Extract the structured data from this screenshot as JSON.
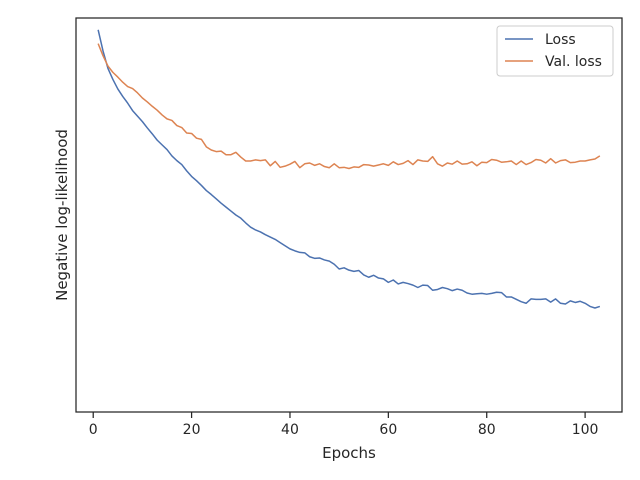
{
  "chart_data": {
    "type": "line",
    "title": "",
    "xlabel": "Epochs",
    "ylabel": "Negative log-likelihood",
    "xlim": [
      -3.5,
      107.5
    ],
    "ylim": [
      0,
      1
    ],
    "xticks": [
      0,
      20,
      40,
      60,
      80,
      100
    ],
    "y_tick_labels": false,
    "grid": false,
    "legend": {
      "placement": "top-right"
    },
    "x": [
      1,
      2,
      3,
      4,
      5,
      6,
      7,
      8,
      9,
      10,
      11,
      12,
      13,
      14,
      15,
      16,
      17,
      18,
      19,
      20,
      21,
      22,
      23,
      24,
      25,
      26,
      27,
      28,
      29,
      30,
      31,
      32,
      33,
      34,
      35,
      36,
      37,
      38,
      39,
      40,
      41,
      42,
      43,
      44,
      45,
      46,
      47,
      48,
      49,
      50,
      51,
      52,
      53,
      54,
      55,
      56,
      57,
      58,
      59,
      60,
      61,
      62,
      63,
      64,
      65,
      66,
      67,
      68,
      69,
      70,
      71,
      72,
      73,
      74,
      75,
      76,
      77,
      78,
      79,
      80,
      81,
      82,
      83,
      84,
      85,
      86,
      87,
      88,
      89,
      90,
      91,
      92,
      93,
      94,
      95,
      96,
      97,
      98,
      99,
      100,
      101,
      102,
      103
    ],
    "series": [
      {
        "name": "Loss",
        "color": "#4c72b0",
        "values": [
          0.97,
          0.916,
          0.872,
          0.844,
          0.82,
          0.801,
          0.784,
          0.765,
          0.751,
          0.737,
          0.721,
          0.706,
          0.69,
          0.678,
          0.666,
          0.65,
          0.638,
          0.628,
          0.612,
          0.598,
          0.587,
          0.575,
          0.562,
          0.552,
          0.541,
          0.53,
          0.52,
          0.51,
          0.5,
          0.492,
          0.48,
          0.469,
          0.462,
          0.457,
          0.45,
          0.444,
          0.438,
          0.43,
          0.422,
          0.414,
          0.409,
          0.405,
          0.404,
          0.394,
          0.39,
          0.391,
          0.386,
          0.383,
          0.375,
          0.363,
          0.366,
          0.36,
          0.357,
          0.359,
          0.348,
          0.342,
          0.347,
          0.34,
          0.338,
          0.329,
          0.335,
          0.325,
          0.329,
          0.326,
          0.322,
          0.316,
          0.322,
          0.321,
          0.309,
          0.311,
          0.316,
          0.313,
          0.308,
          0.312,
          0.309,
          0.302,
          0.299,
          0.3,
          0.301,
          0.299,
          0.301,
          0.304,
          0.303,
          0.292,
          0.292,
          0.286,
          0.28,
          0.276,
          0.287,
          0.286,
          0.286,
          0.287,
          0.279,
          0.287,
          0.276,
          0.274,
          0.282,
          0.278,
          0.281,
          0.276,
          0.268,
          0.264,
          0.268
        ]
      },
      {
        "name": "Val. loss",
        "color": "#dd8452",
        "values": [
          0.935,
          0.904,
          0.878,
          0.862,
          0.85,
          0.837,
          0.826,
          0.821,
          0.81,
          0.797,
          0.787,
          0.776,
          0.766,
          0.754,
          0.744,
          0.74,
          0.727,
          0.722,
          0.708,
          0.707,
          0.695,
          0.692,
          0.673,
          0.665,
          0.661,
          0.662,
          0.653,
          0.653,
          0.659,
          0.647,
          0.637,
          0.637,
          0.64,
          0.638,
          0.64,
          0.625,
          0.636,
          0.621,
          0.624,
          0.629,
          0.636,
          0.62,
          0.63,
          0.632,
          0.626,
          0.63,
          0.623,
          0.62,
          0.63,
          0.62,
          0.621,
          0.618,
          0.622,
          0.621,
          0.628,
          0.627,
          0.624,
          0.627,
          0.63,
          0.626,
          0.635,
          0.628,
          0.631,
          0.638,
          0.628,
          0.64,
          0.637,
          0.636,
          0.648,
          0.63,
          0.624,
          0.632,
          0.629,
          0.637,
          0.629,
          0.63,
          0.635,
          0.625,
          0.634,
          0.633,
          0.641,
          0.639,
          0.634,
          0.635,
          0.637,
          0.628,
          0.637,
          0.628,
          0.633,
          0.641,
          0.639,
          0.632,
          0.643,
          0.632,
          0.638,
          0.64,
          0.633,
          0.634,
          0.637,
          0.637,
          0.64,
          0.642,
          0.65
        ]
      }
    ]
  }
}
